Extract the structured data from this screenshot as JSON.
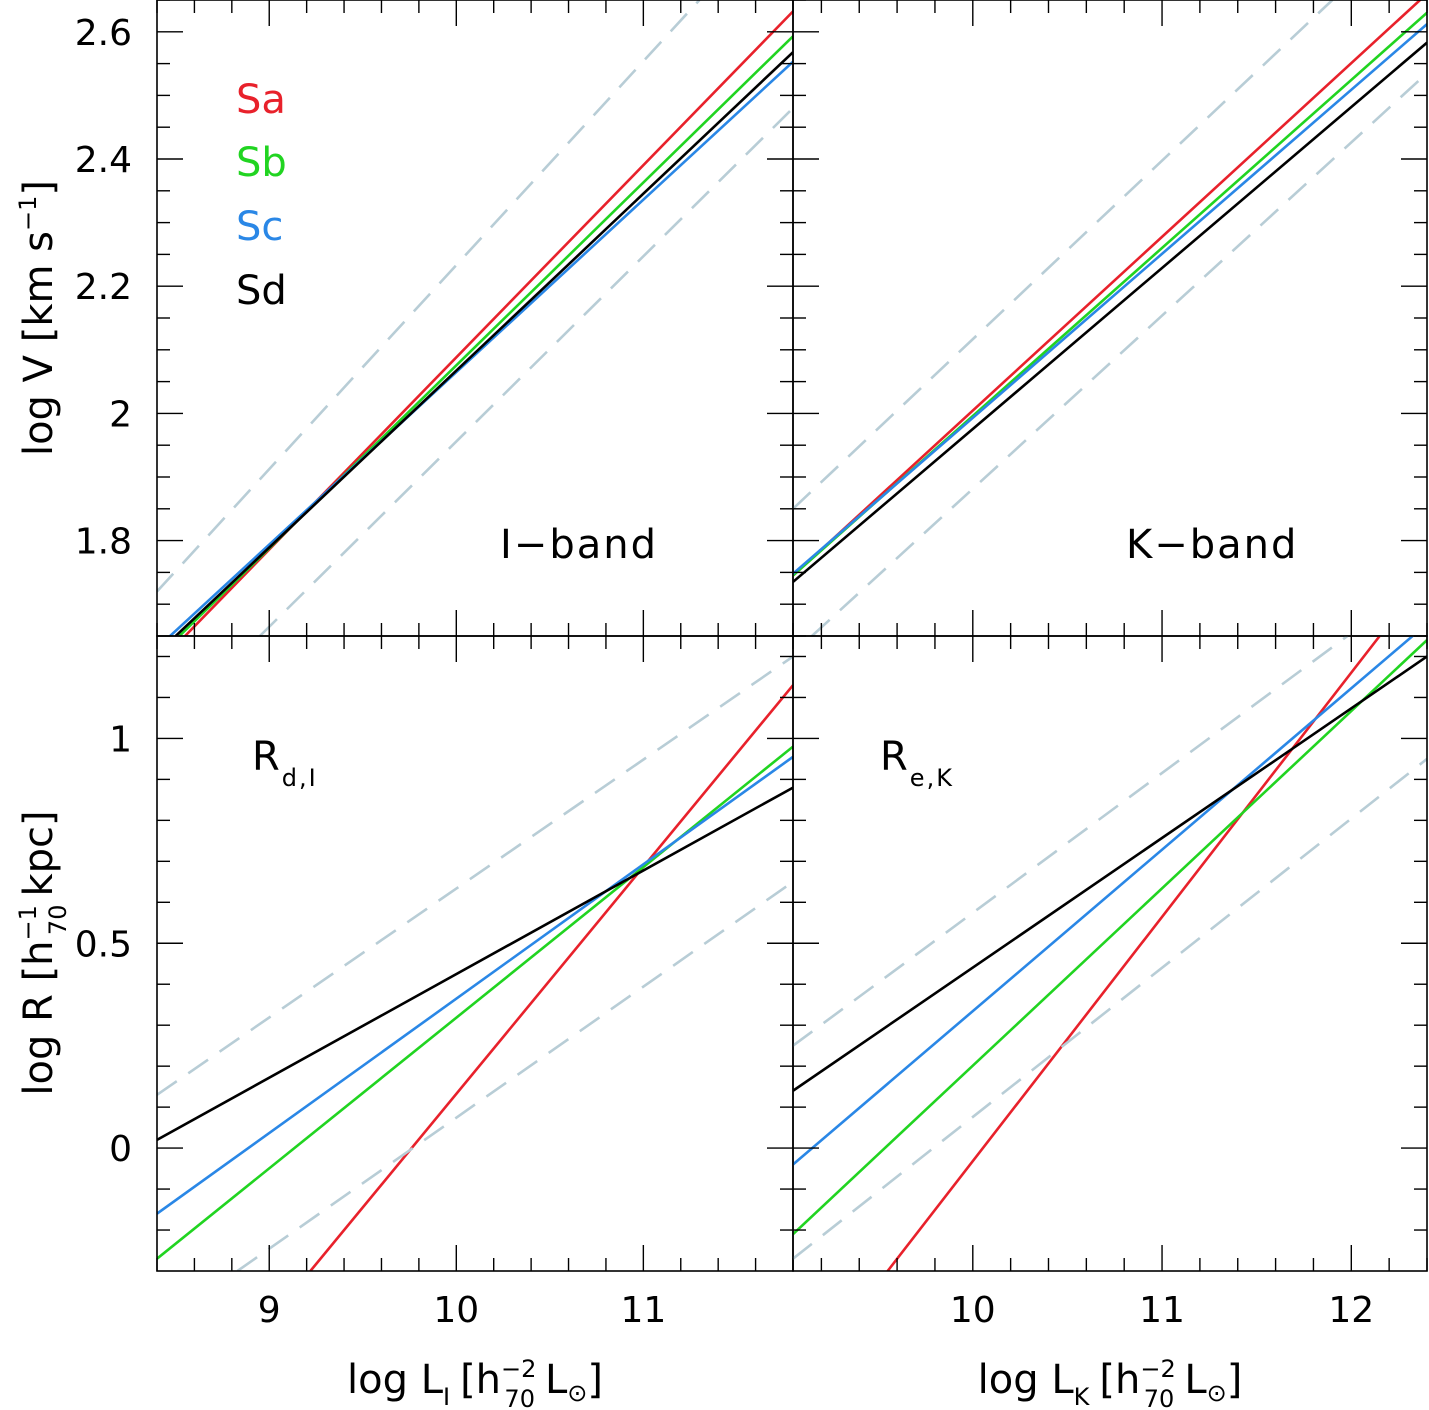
{
  "chart_data": [
    {
      "type": "line",
      "panel": "top-left",
      "annotation": "I−band",
      "xlim": [
        8.4,
        11.8
      ],
      "ylim": [
        1.65,
        2.65
      ],
      "xticks": [
        9,
        10,
        11
      ],
      "yticks": [
        1.8,
        2,
        2.2,
        2.4,
        2.6
      ],
      "ytick_labels": [
        "1.8",
        "2",
        "2.2",
        "2.4",
        "2.6"
      ],
      "series": [
        {
          "name": "Sa",
          "color": "#e8212b",
          "x": [
            8.55,
            11.8
          ],
          "y": [
            1.65,
            2.632
          ]
        },
        {
          "name": "Sb",
          "color": "#21d421",
          "x": [
            8.52,
            11.8
          ],
          "y": [
            1.65,
            2.593
          ]
        },
        {
          "name": "Sc",
          "color": "#2a87e6",
          "x": [
            8.47,
            11.8
          ],
          "y": [
            1.65,
            2.553
          ]
        },
        {
          "name": "Sd",
          "color": "#000000",
          "x": [
            8.5,
            11.8
          ],
          "y": [
            1.65,
            2.568
          ]
        },
        {
          "name": "upper",
          "color": "#b8cdd6",
          "dashed": true,
          "x": [
            8.4,
            11.3
          ],
          "y": [
            1.72,
            2.65
          ]
        },
        {
          "name": "lower",
          "color": "#b8cdd6",
          "dashed": true,
          "x": [
            8.95,
            11.8
          ],
          "y": [
            1.65,
            2.48
          ]
        }
      ]
    },
    {
      "type": "line",
      "panel": "top-right",
      "annotation": "K−band",
      "xlim": [
        9.05,
        12.4
      ],
      "ylim": [
        1.65,
        2.65
      ],
      "xticks": [
        10,
        11,
        12
      ],
      "series": [
        {
          "name": "Sa",
          "color": "#e8212b",
          "x": [
            9.05,
            12.4
          ],
          "y": [
            1.745,
            2.66
          ]
        },
        {
          "name": "Sb",
          "color": "#21d421",
          "x": [
            9.05,
            12.4
          ],
          "y": [
            1.745,
            2.63
          ]
        },
        {
          "name": "Sc",
          "color": "#2a87e6",
          "x": [
            9.05,
            12.4
          ],
          "y": [
            1.748,
            2.612
          ]
        },
        {
          "name": "Sd",
          "color": "#000000",
          "x": [
            9.05,
            12.4
          ],
          "y": [
            1.735,
            2.583
          ]
        },
        {
          "name": "upper",
          "color": "#b8cdd6",
          "dashed": true,
          "x": [
            9.05,
            11.9
          ],
          "y": [
            1.85,
            2.65
          ]
        },
        {
          "name": "lower",
          "color": "#b8cdd6",
          "dashed": true,
          "x": [
            9.15,
            12.4
          ],
          "y": [
            1.65,
            2.535
          ]
        }
      ]
    },
    {
      "type": "line",
      "panel": "bottom-left",
      "annotation": "R",
      "annotation_sub": "d,I",
      "xlim": [
        8.4,
        11.8
      ],
      "ylim": [
        -0.3,
        1.25
      ],
      "xticks": [
        9,
        10,
        11
      ],
      "xtick_labels": [
        "9",
        "10",
        "11"
      ],
      "yticks": [
        0,
        0.5,
        1
      ],
      "ytick_labels": [
        "0",
        "0.5",
        "1"
      ],
      "series": [
        {
          "name": "Sa",
          "color": "#e8212b",
          "x": [
            9.22,
            11.8
          ],
          "y": [
            -0.3,
            1.13
          ]
        },
        {
          "name": "Sb",
          "color": "#21d421",
          "x": [
            8.4,
            11.8
          ],
          "y": [
            -0.27,
            0.98
          ]
        },
        {
          "name": "Sc",
          "color": "#2a87e6",
          "x": [
            8.4,
            11.8
          ],
          "y": [
            -0.16,
            0.955
          ]
        },
        {
          "name": "Sd",
          "color": "#000000",
          "x": [
            8.4,
            11.8
          ],
          "y": [
            0.02,
            0.88
          ]
        },
        {
          "name": "upper",
          "color": "#b8cdd6",
          "dashed": true,
          "x": [
            8.4,
            11.8
          ],
          "y": [
            0.13,
            1.2
          ]
        },
        {
          "name": "lower",
          "color": "#b8cdd6",
          "dashed": true,
          "x": [
            8.83,
            11.8
          ],
          "y": [
            -0.3,
            0.65
          ]
        }
      ]
    },
    {
      "type": "line",
      "panel": "bottom-right",
      "annotation": "R",
      "annotation_sub": "e,K",
      "xlim": [
        9.05,
        12.4
      ],
      "ylim": [
        -0.3,
        1.25
      ],
      "xticks": [
        10,
        11,
        12
      ],
      "xtick_labels": [
        "10",
        "11",
        "12"
      ],
      "series": [
        {
          "name": "Sa",
          "color": "#e8212b",
          "x": [
            9.55,
            12.15
          ],
          "y": [
            -0.3,
            1.25
          ]
        },
        {
          "name": "Sb",
          "color": "#21d421",
          "x": [
            9.05,
            12.4
          ],
          "y": [
            -0.21,
            1.24
          ]
        },
        {
          "name": "Sc",
          "color": "#2a87e6",
          "x": [
            9.05,
            12.4
          ],
          "y": [
            -0.04,
            1.28
          ]
        },
        {
          "name": "Sd",
          "color": "#000000",
          "x": [
            9.05,
            12.4
          ],
          "y": [
            0.14,
            1.2
          ]
        },
        {
          "name": "upper",
          "color": "#b8cdd6",
          "dashed": true,
          "x": [
            9.05,
            11.98
          ],
          "y": [
            0.25,
            1.25
          ]
        },
        {
          "name": "lower",
          "color": "#b8cdd6",
          "dashed": true,
          "x": [
            9.05,
            12.4
          ],
          "y": [
            -0.27,
            0.95
          ]
        }
      ]
    }
  ],
  "legend": [
    {
      "label": "Sa",
      "color": "#e8212b"
    },
    {
      "label": "Sb",
      "color": "#21d421"
    },
    {
      "label": "Sc",
      "color": "#2a87e6"
    },
    {
      "label": "Sd",
      "color": "#000000"
    }
  ],
  "axes": {
    "top_ylabel": "log V [km s",
    "top_ylabel_sup": "−1",
    "top_ylabel_close": "]",
    "bottom_ylabel": "log R [h",
    "bottom_ylabel_sup": "−1",
    "bottom_ylabel_sub": "70",
    "bottom_ylabel_close": "kpc]",
    "left_xlabel": "log L",
    "left_xlabel_sub": "I",
    "right_xlabel": "log L",
    "right_xlabel_sub": "K",
    "xlabel_bracket_open": "[h",
    "xlabel_sup": "−2",
    "xlabel_sub": "70",
    "xlabel_tail": "L",
    "xlabel_odot": "⊙",
    "xlabel_bracket_close": "]"
  }
}
